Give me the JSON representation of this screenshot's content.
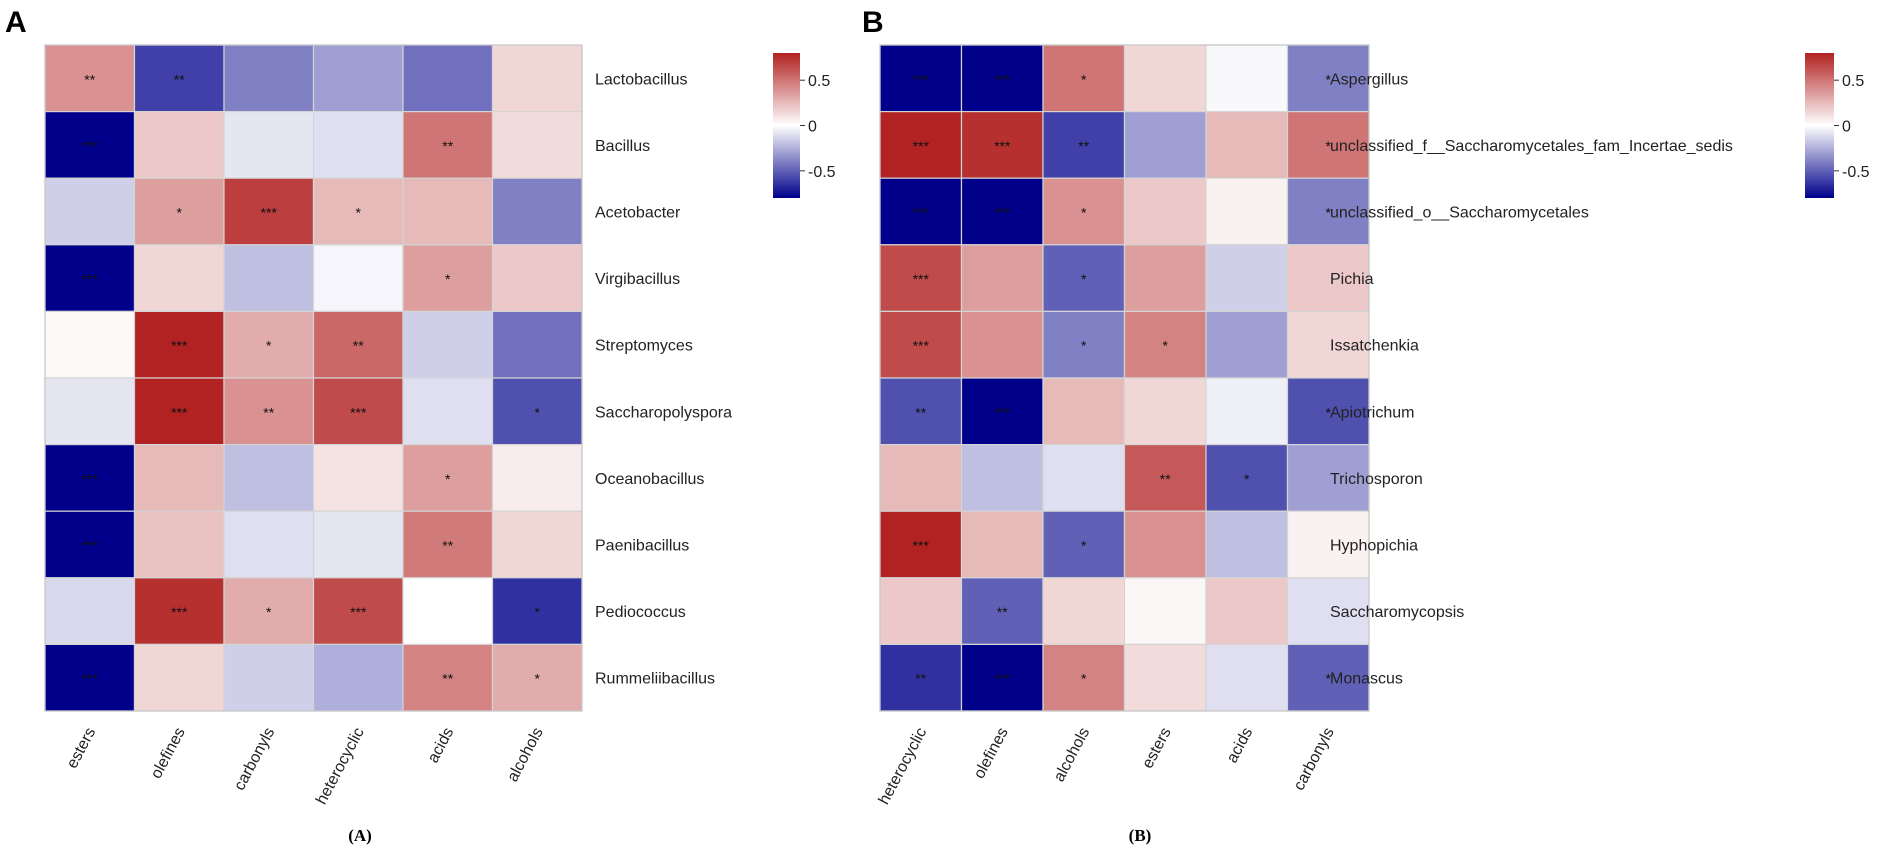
{
  "chart_data": [
    {
      "type": "heatmap",
      "panel_label": "A",
      "caption": "(A)",
      "rows": [
        "Lactobacillus",
        "Bacillus",
        "Acetobacter",
        "Virgibacillus",
        "Streptomyces",
        "Saccharopolyspora",
        "Oceanobacillus",
        "Paenibacillus",
        "Pediococcus",
        "Rummeliibacillus"
      ],
      "columns": [
        "esters",
        "olefines",
        "carbonyls",
        "heterocyclic",
        "acids",
        "alcohols"
      ],
      "values": [
        [
          0.4,
          -0.6,
          -0.4,
          -0.3,
          -0.45,
          0.15
        ],
        [
          -0.85,
          0.2,
          -0.08,
          -0.1,
          0.5,
          0.13
        ],
        [
          -0.15,
          0.35,
          0.7,
          0.25,
          0.25,
          -0.4
        ],
        [
          -0.85,
          0.15,
          -0.2,
          -0.03,
          0.35,
          0.2
        ],
        [
          0.02,
          0.8,
          0.3,
          0.55,
          -0.15,
          -0.45
        ],
        [
          -0.08,
          0.8,
          0.4,
          0.65,
          -0.1,
          -0.55
        ],
        [
          -0.85,
          0.25,
          -0.2,
          0.1,
          0.35,
          0.07
        ],
        [
          -0.85,
          0.22,
          -0.1,
          -0.08,
          0.48,
          0.15
        ],
        [
          -0.12,
          0.75,
          0.3,
          0.65,
          0.0,
          -0.65
        ],
        [
          -0.85,
          0.15,
          -0.15,
          -0.25,
          0.45,
          0.3
        ]
      ],
      "stars": [
        [
          "**",
          "**",
          "",
          "",
          "",
          ""
        ],
        [
          "***",
          "",
          "",
          "",
          "**",
          ""
        ],
        [
          "",
          "*",
          "***",
          "*",
          "",
          ""
        ],
        [
          "***",
          "",
          "",
          "",
          "*",
          ""
        ],
        [
          "",
          "***",
          "*",
          "**",
          "",
          ""
        ],
        [
          "",
          "***",
          "**",
          "***",
          "",
          "*"
        ],
        [
          "***",
          "",
          "",
          "",
          "*",
          ""
        ],
        [
          "***",
          "",
          "",
          "",
          "**",
          ""
        ],
        [
          "",
          "***",
          "*",
          "***",
          "",
          "*"
        ],
        [
          "***",
          "",
          "",
          "",
          "**",
          "*"
        ]
      ],
      "colorbar": {
        "ticks": [
          0.5,
          0,
          -0.5
        ],
        "tick_labels": [
          "0.5",
          "0",
          "-0.5"
        ],
        "range": [
          -0.8,
          0.8
        ]
      },
      "colors": {
        "low": "#00008b",
        "mid": "#ffffff",
        "high": "#b22222"
      }
    },
    {
      "type": "heatmap",
      "panel_label": "B",
      "caption": "(B)",
      "rows": [
        "Aspergillus",
        "unclassified_f__Saccharomycetales_fam_Incertae_sedis",
        "unclassified_o__Saccharomycetales",
        "Pichia",
        "Issatchenkia",
        "Apiotrichum",
        "Trichosporon",
        "Hyphopichia",
        "Saccharomycopsis",
        "Monascus"
      ],
      "columns": [
        "heterocyclic",
        "olefines",
        "alcohols",
        "esters",
        "acids",
        "carbonyls"
      ],
      "values": [
        [
          -0.8,
          -0.85,
          0.5,
          0.15,
          -0.02,
          -0.4
        ],
        [
          0.8,
          0.75,
          -0.6,
          -0.3,
          0.25,
          0.5
        ],
        [
          -0.8,
          -0.85,
          0.4,
          0.2,
          0.05,
          -0.4
        ],
        [
          0.65,
          0.35,
          -0.5,
          0.35,
          -0.15,
          0.2
        ],
        [
          0.65,
          0.4,
          -0.4,
          0.45,
          -0.3,
          0.15
        ],
        [
          -0.55,
          -0.8,
          0.25,
          0.15,
          -0.05,
          -0.55
        ],
        [
          0.25,
          -0.2,
          -0.1,
          0.6,
          -0.55,
          -0.3
        ],
        [
          0.8,
          0.25,
          -0.5,
          0.4,
          -0.2,
          0.05
        ],
        [
          0.2,
          -0.5,
          0.15,
          0.03,
          0.2,
          -0.1
        ],
        [
          -0.65,
          -0.85,
          0.45,
          0.13,
          -0.1,
          -0.5
        ]
      ],
      "stars": [
        [
          "***",
          "***",
          "*",
          "",
          "",
          "*"
        ],
        [
          "***",
          "***",
          "**",
          "",
          "",
          "*"
        ],
        [
          "***",
          "***",
          "*",
          "",
          "",
          "*"
        ],
        [
          "***",
          "",
          "*",
          "",
          "",
          ""
        ],
        [
          "***",
          "",
          "*",
          "*",
          "",
          ""
        ],
        [
          "**",
          "***",
          "",
          "",
          "",
          "*"
        ],
        [
          "",
          "",
          "",
          "**",
          "*",
          ""
        ],
        [
          "***",
          "",
          "*",
          "",
          "",
          ""
        ],
        [
          "",
          "**",
          "",
          "",
          "",
          ""
        ],
        [
          "**",
          "***",
          "*",
          "",
          "",
          "*"
        ]
      ],
      "colorbar": {
        "ticks": [
          0.5,
          0,
          -0.5
        ],
        "tick_labels": [
          "0.5",
          "0",
          "-0.5"
        ],
        "range": [
          -0.8,
          0.8
        ]
      },
      "colors": {
        "low": "#00008b",
        "mid": "#ffffff",
        "high": "#b22222"
      }
    }
  ]
}
